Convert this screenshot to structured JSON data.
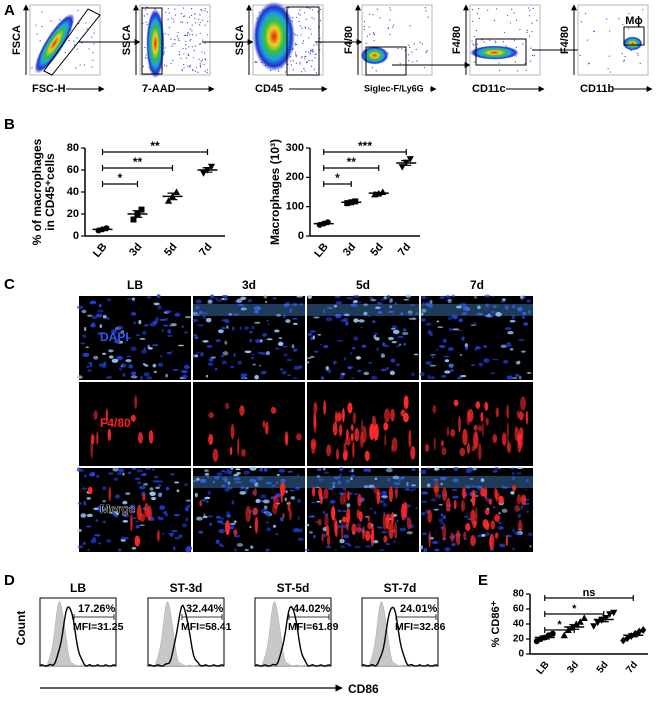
{
  "panel_a": {
    "label": "A",
    "plots": [
      {
        "y_label": "FSCA",
        "x_label": "FSC-H"
      },
      {
        "y_label": "SSCA",
        "x_label": "7-AAD"
      },
      {
        "y_label": "SSCA",
        "x_label": "CD45"
      },
      {
        "y_label": "F4/80",
        "x_label": "Siglec-F/Ly6G"
      },
      {
        "y_label": "F4/80",
        "x_label": "CD11c"
      },
      {
        "y_label": "F4/80",
        "x_label": "CD11b",
        "gate_label": "Mϕ"
      }
    ]
  },
  "panel_b": {
    "label": "B"
  },
  "panel_c": {
    "label": "C",
    "columns": [
      "LB",
      "3d",
      "5d",
      "7d"
    ],
    "rows": [
      "DAPI",
      "F4/80",
      "Merge"
    ]
  },
  "panel_d": {
    "label": "D",
    "x_label": "CD86",
    "y_label": "Count",
    "histograms": [
      {
        "title": "LB",
        "percent": "17.26%",
        "mfi": "MFI=31.25"
      },
      {
        "title": "ST-3d",
        "percent": "32.44%",
        "mfi": "MFI=58.41"
      },
      {
        "title": "ST-5d",
        "percent": "44.02%",
        "mfi": "MFI=61.89"
      },
      {
        "title": "ST-7d",
        "percent": "24.01%",
        "mfi": "MFI=32.86"
      }
    ]
  },
  "panel_e": {
    "label": "E"
  },
  "chart_data": [
    {
      "type": "dot_plot",
      "y_label": [
        "% of macrophages",
        "in CD45⁺cells"
      ],
      "categories": [
        "LB",
        "3d",
        "5d",
        "7d"
      ],
      "markers": [
        "circle",
        "square",
        "triangle",
        "triangle-down"
      ],
      "points": [
        [
          5,
          6,
          7
        ],
        [
          15,
          20,
          24
        ],
        [
          32,
          36,
          40
        ],
        [
          57,
          60,
          63
        ]
      ],
      "means": [
        6,
        20,
        36,
        60
      ],
      "sems": [
        1,
        3,
        3,
        2
      ],
      "ylim": [
        0,
        80
      ],
      "yticks": [
        0,
        20,
        40,
        60,
        80
      ],
      "comparisons": [
        {
          "from": "LB",
          "to": "7d",
          "label": "**"
        },
        {
          "from": "LB",
          "to": "5d",
          "label": "**"
        },
        {
          "from": "LB",
          "to": "3d",
          "label": "*"
        }
      ]
    },
    {
      "type": "dot_plot",
      "y_label": [
        "Macrophages (10³)"
      ],
      "categories": [
        "LB",
        "3d",
        "5d",
        "7d"
      ],
      "markers": [
        "circle",
        "square",
        "triangle",
        "triangle-down"
      ],
      "points": [
        [
          38,
          42,
          47
        ],
        [
          112,
          115,
          118
        ],
        [
          142,
          145,
          150
        ],
        [
          235,
          250,
          262
        ]
      ],
      "means": [
        42,
        115,
        146,
        249
      ],
      "sems": [
        3,
        2,
        3,
        8
      ],
      "ylim": [
        0,
        300
      ],
      "yticks": [
        0,
        100,
        200,
        300
      ],
      "comparisons": [
        {
          "from": "LB",
          "to": "7d",
          "label": "***"
        },
        {
          "from": "LB",
          "to": "5d",
          "label": "**"
        },
        {
          "from": "LB",
          "to": "3d",
          "label": "*"
        }
      ]
    },
    {
      "type": "dot_plot",
      "y_label": [
        "% CD86⁺"
      ],
      "categories": [
        "LB",
        "3d",
        "5d",
        "7d"
      ],
      "markers": [
        "circle",
        "triangle",
        "triangle-down",
        "diamond"
      ],
      "points": [
        [
          17,
          20,
          22,
          25,
          27
        ],
        [
          25,
          32,
          36,
          40,
          43,
          48
        ],
        [
          37,
          42,
          45,
          48,
          53,
          55
        ],
        [
          18,
          21,
          24,
          27,
          30,
          32
        ]
      ],
      "means": [
        22,
        36,
        46,
        25
      ],
      "sems": [
        2,
        3,
        3,
        2
      ],
      "ylim": [
        0,
        80
      ],
      "yticks": [
        0,
        20,
        40,
        60,
        80
      ],
      "comparisons": [
        {
          "from": "LB",
          "to": "7d",
          "label": "ns"
        },
        {
          "from": "LB",
          "to": "5d",
          "label": "*"
        },
        {
          "from": "LB",
          "to": "3d",
          "label": "*"
        }
      ]
    }
  ]
}
